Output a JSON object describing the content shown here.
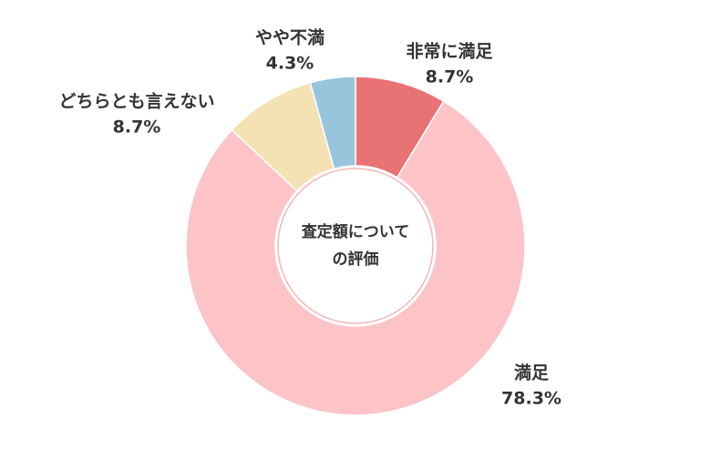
{
  "chart_data": {
    "type": "donut",
    "title": "査定額についての評価",
    "categories": [
      "非常に満足",
      "満足",
      "どちらとも言えない",
      "やや不満"
    ],
    "values": [
      8.7,
      78.3,
      8.7,
      4.3
    ],
    "value_labels": [
      "8.7%",
      "78.3%",
      "8.7%",
      "4.3%"
    ],
    "colors": [
      "#e97274",
      "#fdc4c7",
      "#f4e1b4",
      "#98c4dc"
    ]
  }
}
